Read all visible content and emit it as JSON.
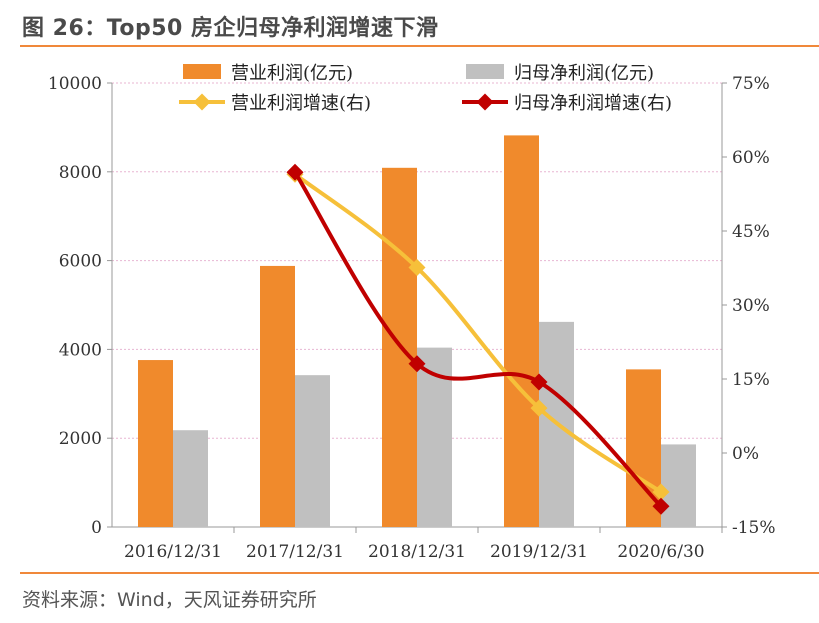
{
  "title": "图 26：Top50 房企归母净利润增速下滑",
  "source": "资料来源：Wind，天风证券研究所",
  "colors": {
    "rule": "#f0883a",
    "bar_revenue": "#f08a2c",
    "bar_net": "#c0c0c0",
    "line_revenue": "#f6c03a",
    "line_net": "#c00000",
    "grid": "#e8b6d2"
  },
  "chart_data": {
    "type": "bar",
    "categories": [
      "2016/12/31",
      "2017/12/31",
      "2018/12/31",
      "2019/12/31",
      "2020/6/30"
    ],
    "ylim": [
      0,
      10000
    ],
    "y_ticks": [
      "0",
      "2000",
      "4000",
      "6000",
      "8000",
      "10000"
    ],
    "y2lim": [
      -15,
      75
    ],
    "y2_ticks": [
      "-15%",
      "0%",
      "15%",
      "30%",
      "45%",
      "60%",
      "75%"
    ],
    "legend_position": "top",
    "series": [
      {
        "name": "营业利润(亿元)",
        "type": "bar",
        "axis": "left",
        "values": [
          3760,
          5880,
          8090,
          8820,
          3550
        ]
      },
      {
        "name": "归母净利润(亿元)",
        "type": "bar",
        "axis": "left",
        "values": [
          2180,
          3420,
          4040,
          4620,
          1860
        ]
      },
      {
        "name": "营业利润增速(右)",
        "type": "line",
        "axis": "right",
        "values": [
          null,
          56.5,
          37.6,
          9.1,
          -7.9
        ]
      },
      {
        "name": "归母净利润增速(右)",
        "type": "line",
        "axis": "right",
        "values": [
          null,
          56.9,
          18.1,
          14.4,
          -10.8
        ]
      }
    ]
  }
}
